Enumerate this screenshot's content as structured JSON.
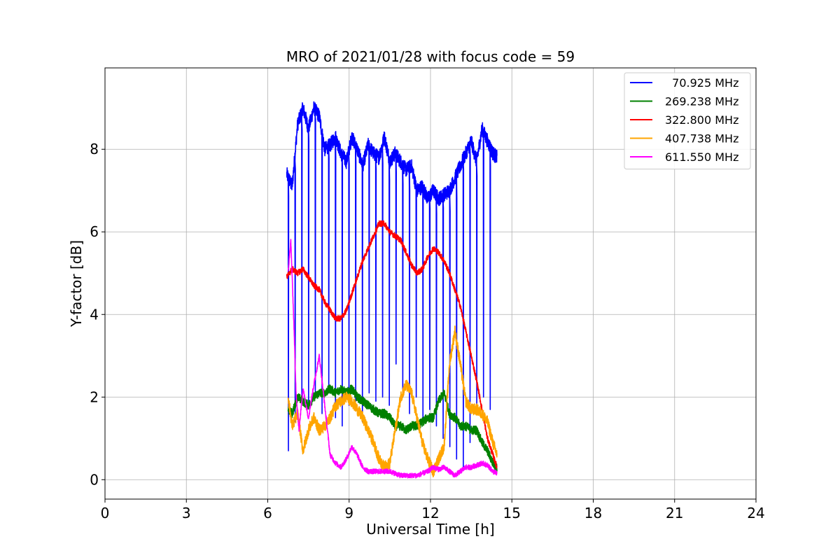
{
  "chart_data": {
    "type": "line",
    "title": "MRO of 2021/01/28 with focus code = 59",
    "xlabel": "Universal Time [h]",
    "ylabel": "Y-factor [dB]",
    "xlim": [
      0,
      24
    ],
    "ylim": [
      -0.47,
      9.97
    ],
    "xticks": [
      0,
      3,
      6,
      9,
      12,
      15,
      18,
      21,
      24
    ],
    "yticks": [
      0,
      2,
      4,
      6,
      8
    ],
    "grid": true,
    "legend_position": "top-right",
    "series": [
      {
        "name": "  70.925 MHz",
        "color": "#0000ff",
        "dip_period": 0.248,
        "dip_start": 6.75,
        "dip_end": 14.35,
        "dip_values": [
          0.7,
          1.4,
          2.0,
          1.8,
          2.0,
          1.6,
          2.1,
          1.5,
          1.3,
          1.8,
          1.9,
          1.4,
          2.1,
          1.9,
          2.0,
          1.8,
          2.8,
          2.0,
          1.6,
          2.0,
          1.5,
          1.7,
          1.3,
          1.0,
          0.8,
          0.5,
          0.3,
          0.9,
          1.8,
          2.0,
          1.7
        ],
        "x": [
          6.7,
          6.9,
          7.1,
          7.3,
          7.5,
          7.7,
          7.9,
          8.1,
          8.3,
          8.5,
          8.7,
          8.9,
          9.1,
          9.3,
          9.5,
          9.7,
          9.9,
          10.1,
          10.3,
          10.5,
          10.7,
          10.9,
          11.1,
          11.3,
          11.5,
          11.7,
          11.9,
          12.1,
          12.3,
          12.5,
          12.7,
          12.9,
          13.1,
          13.3,
          13.5,
          13.7,
          13.9,
          14.1,
          14.3,
          14.45
        ],
        "y": [
          7.4,
          7.1,
          8.6,
          9.0,
          8.5,
          9.0,
          8.8,
          8.0,
          8.1,
          8.3,
          7.9,
          7.7,
          8.3,
          8.0,
          7.6,
          8.1,
          7.9,
          7.8,
          8.3,
          7.7,
          7.9,
          7.7,
          7.5,
          7.6,
          7.0,
          7.1,
          6.8,
          7.0,
          6.8,
          6.9,
          7.0,
          7.3,
          7.6,
          7.9,
          8.2,
          7.7,
          8.5,
          8.2,
          7.9,
          7.8
        ]
      },
      {
        "name": "269.238 MHz",
        "color": "#008000",
        "x": [
          6.75,
          6.9,
          7.1,
          7.3,
          7.5,
          7.7,
          7.9,
          8.1,
          8.3,
          8.5,
          8.7,
          8.9,
          9.1,
          9.3,
          9.5,
          9.7,
          9.9,
          10.1,
          10.3,
          10.5,
          10.7,
          10.9,
          11.1,
          11.3,
          11.5,
          11.7,
          11.9,
          12.1,
          12.3,
          12.5,
          12.7,
          12.9,
          13.1,
          13.3,
          13.5,
          13.7,
          13.9,
          14.1,
          14.3,
          14.45
        ],
        "y": [
          1.7,
          1.6,
          2.0,
          1.9,
          1.8,
          2.0,
          2.1,
          2.1,
          2.2,
          2.1,
          2.2,
          2.1,
          2.2,
          2.0,
          1.9,
          1.8,
          1.7,
          1.6,
          1.6,
          1.5,
          1.3,
          1.3,
          1.2,
          1.3,
          1.3,
          1.4,
          1.5,
          1.5,
          1.9,
          2.1,
          1.6,
          1.5,
          1.3,
          1.3,
          1.2,
          1.2,
          0.9,
          0.7,
          0.4,
          0.3
        ]
      },
      {
        "name": "322.800 MHz",
        "color": "#ff0000",
        "x": [
          6.7,
          6.9,
          7.1,
          7.3,
          7.5,
          7.7,
          7.9,
          8.1,
          8.3,
          8.5,
          8.7,
          8.9,
          9.1,
          9.3,
          9.5,
          9.7,
          9.9,
          10.1,
          10.3,
          10.5,
          10.7,
          10.9,
          11.1,
          11.3,
          11.5,
          11.7,
          11.9,
          12.1,
          12.3,
          12.5,
          12.7,
          12.9,
          13.1,
          13.3,
          13.5,
          13.7,
          13.9,
          14.1,
          14.3,
          14.45
        ],
        "y": [
          4.9,
          5.1,
          5.0,
          5.1,
          4.9,
          4.7,
          4.6,
          4.3,
          4.1,
          3.9,
          3.9,
          4.1,
          4.5,
          4.9,
          5.3,
          5.6,
          5.9,
          6.2,
          6.2,
          6.0,
          5.9,
          5.8,
          5.5,
          5.2,
          5.0,
          5.1,
          5.4,
          5.6,
          5.5,
          5.3,
          5.0,
          4.6,
          4.2,
          3.6,
          3.0,
          2.4,
          1.7,
          1.0,
          0.6,
          0.3
        ]
      },
      {
        "name": "407.738 MHz",
        "color": "#ffa500",
        "x": [
          6.75,
          6.9,
          7.1,
          7.3,
          7.5,
          7.7,
          7.9,
          8.1,
          8.3,
          8.5,
          8.7,
          8.9,
          9.1,
          9.3,
          9.5,
          9.7,
          9.9,
          10.1,
          10.3,
          10.5,
          10.7,
          10.9,
          11.1,
          11.3,
          11.5,
          11.7,
          11.9,
          12.1,
          12.3,
          12.5,
          12.7,
          12.9,
          13.1,
          13.3,
          13.5,
          13.7,
          13.9,
          14.1,
          14.3,
          14.45
        ],
        "y": [
          2.0,
          1.3,
          1.6,
          0.7,
          1.2,
          1.5,
          1.2,
          1.3,
          1.5,
          1.8,
          1.9,
          2.0,
          1.9,
          1.7,
          1.5,
          1.2,
          0.9,
          0.5,
          0.3,
          0.4,
          1.2,
          2.0,
          2.3,
          2.1,
          1.5,
          0.9,
          0.5,
          0.2,
          0.5,
          0.8,
          2.8,
          3.6,
          2.8,
          1.9,
          1.7,
          1.7,
          1.6,
          1.4,
          0.9,
          0.6
        ]
      },
      {
        "name": "611.550 MHz",
        "color": "#ff00ff",
        "x": [
          6.75,
          6.85,
          6.95,
          7.05,
          7.15,
          7.3,
          7.5,
          7.7,
          7.9,
          8.1,
          8.3,
          8.5,
          8.7,
          8.9,
          9.1,
          9.3,
          9.5,
          9.7,
          9.9,
          10.1,
          10.3,
          10.5,
          10.7,
          10.9,
          11.1,
          11.3,
          11.5,
          11.7,
          11.9,
          12.1,
          12.3,
          12.5,
          12.7,
          12.9,
          13.1,
          13.3,
          13.5,
          13.7,
          13.9,
          14.1,
          14.3,
          14.45
        ],
        "y": [
          5.0,
          5.8,
          4.0,
          2.0,
          1.2,
          2.2,
          1.5,
          2.3,
          3.0,
          1.8,
          0.6,
          0.4,
          0.3,
          0.5,
          0.8,
          0.6,
          0.3,
          0.2,
          0.2,
          0.2,
          0.2,
          0.2,
          0.15,
          0.1,
          0.1,
          0.1,
          0.1,
          0.15,
          0.2,
          0.3,
          0.25,
          0.3,
          0.2,
          0.1,
          0.2,
          0.3,
          0.3,
          0.35,
          0.4,
          0.35,
          0.2,
          0.15
        ]
      }
    ]
  }
}
